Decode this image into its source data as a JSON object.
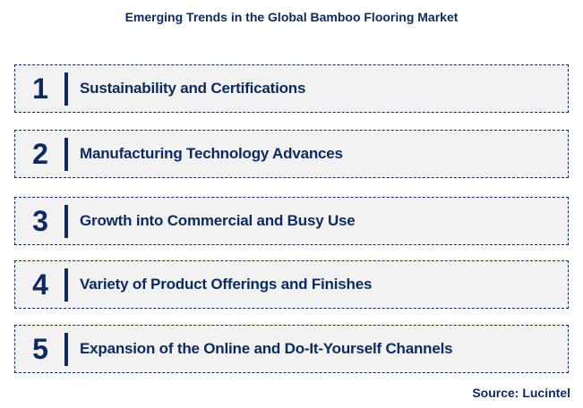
{
  "title": "Emerging Trends in the Global Bamboo Flooring Market",
  "items": [
    {
      "number": "1",
      "label": "Sustainability and Certifications"
    },
    {
      "number": "2",
      "label": "Manufacturing Technology Advances"
    },
    {
      "number": "3",
      "label": "Growth into Commercial and Busy Use"
    },
    {
      "number": "4",
      "label": "Variety of Product Offerings and Finishes"
    },
    {
      "number": "5",
      "label": "Expansion of the Online and Do-It-Yourself Channels"
    }
  ],
  "source": "Source: Lucintel",
  "colors": {
    "accent": "#0d2a5e",
    "box_background": "#f2f2f2"
  }
}
